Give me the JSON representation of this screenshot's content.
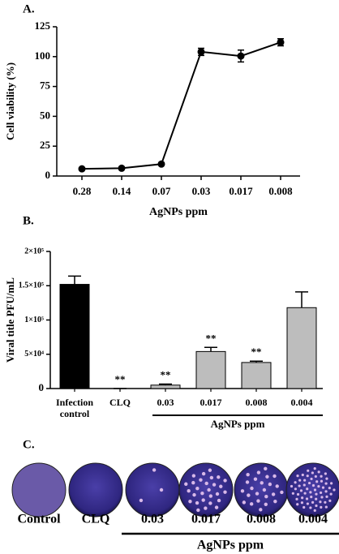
{
  "chart_data": [
    {
      "type": "line",
      "panel_label": "A.",
      "xlabel": "AgNPs ppm",
      "ylabel": "Cell viability (%)",
      "categories": [
        "0.28",
        "0.14",
        "0.07",
        "0.03",
        "0.017",
        "0.008"
      ],
      "values": [
        6,
        6.5,
        10,
        104,
        100.5,
        112
      ],
      "errors": [
        1,
        1,
        1,
        3,
        5,
        3
      ],
      "color": "#000000",
      "ylim": [
        0,
        125
      ],
      "yticks": [
        0,
        25,
        50,
        75,
        100,
        125
      ]
    },
    {
      "type": "bar",
      "panel_label": "B.",
      "ylabel": "Viral title PFU/mL",
      "categories": [
        "Infection control",
        "CLQ",
        "0.03",
        "0.017",
        "0.008",
        "0.004"
      ],
      "values": [
        152000,
        0,
        5000,
        54000,
        38000,
        118000
      ],
      "errors": [
        12000,
        0,
        1500,
        6000,
        2000,
        23000
      ],
      "colors": [
        "#000000",
        "#000000",
        "#bdbdbd",
        "#bdbdbd",
        "#bdbdbd",
        "#bdbdbd"
      ],
      "significance": [
        null,
        "**",
        "**",
        "**",
        "**",
        null
      ],
      "group_label": "AgNPs ppm",
      "ylim": [
        0,
        200000
      ],
      "yticks": [
        0,
        {
          "value": 50000,
          "label": "5×10⁴"
        },
        {
          "value": 100000,
          "label": "1×10⁵"
        },
        {
          "value": 150000,
          "label": "1.5×10⁵"
        },
        {
          "value": 200000,
          "label": "2×10⁵"
        }
      ]
    }
  ],
  "panel_c": {
    "panel_label": "C.",
    "plates": [
      "Control",
      "CLQ",
      "0.03",
      "0.017",
      "0.008",
      "0.004"
    ],
    "group_label": "AgNPs ppm"
  }
}
